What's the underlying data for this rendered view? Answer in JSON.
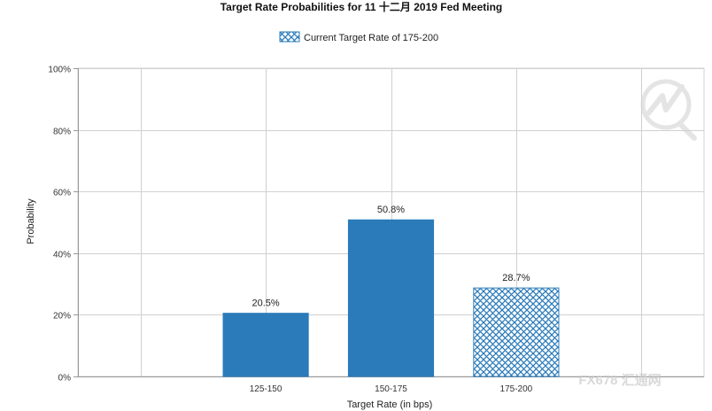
{
  "chart_data": {
    "type": "bar",
    "title": "Target Rate Probabilities for 11 十二月 2019 Fed Meeting",
    "legend": {
      "placement": "top-center",
      "entry": "Current Target Rate of 175-200"
    },
    "xlabel": "Target Rate (in bps)",
    "ylabel": "Probability",
    "ylim": [
      0,
      100
    ],
    "yticks": [
      "0%",
      "20%",
      "40%",
      "60%",
      "80%",
      "100%"
    ],
    "ytick_values": [
      0,
      20,
      40,
      60,
      80,
      100
    ],
    "grid": true,
    "categories": [
      "",
      "125-150",
      "150-175",
      "175-200",
      ""
    ],
    "values": [
      null,
      20.5,
      50.8,
      28.7,
      null
    ],
    "data_labels": [
      "",
      "20.5%",
      "50.8%",
      "28.7%",
      ""
    ],
    "highlight_category": "175-200",
    "colors": {
      "bar": "#2b7bba",
      "grid": "#d0d0d0",
      "axis": "#999999"
    }
  },
  "watermark": {
    "text": "FX678 汇通网"
  }
}
